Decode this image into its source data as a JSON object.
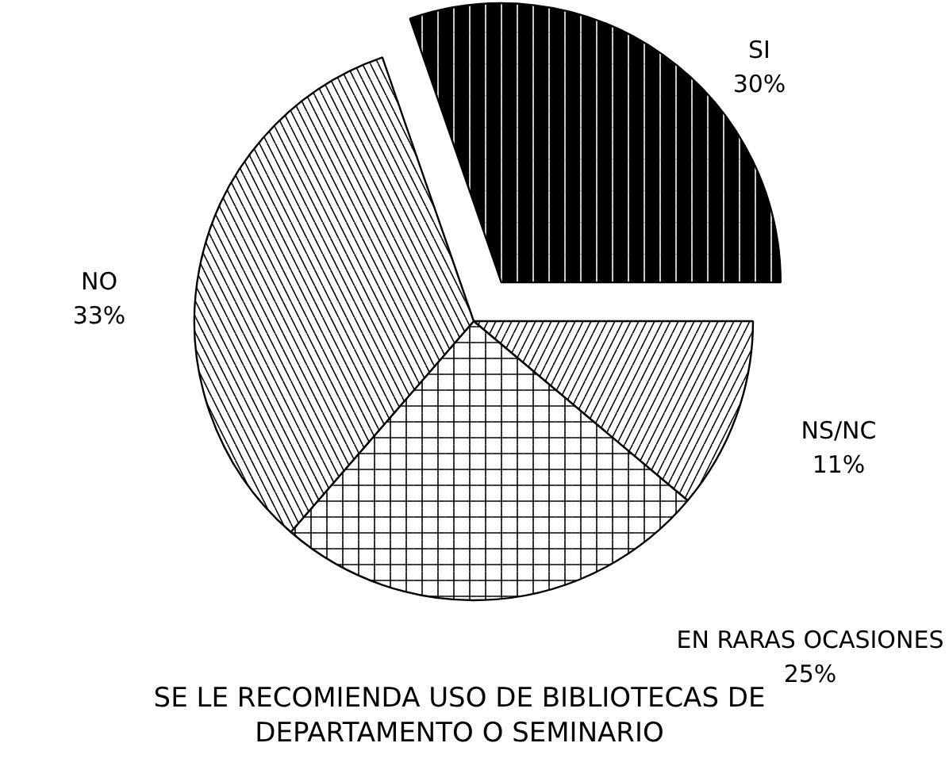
{
  "chart_data": {
    "type": "pie",
    "title": "SE LE RECOMIENDA USO DE BIBLIOTECAS DE\nDEPARTAMENTO O SEMINARIO",
    "categories": [
      "SI",
      "NS/NC",
      "EN RARAS OCASIONES",
      "NO"
    ],
    "values": [
      30,
      11,
      25,
      33
    ],
    "value_labels": [
      "30%",
      "11%",
      "25%",
      "33%"
    ],
    "colors": [
      "#000000",
      "#ffffff",
      "#ffffff",
      "#ffffff"
    ]
  }
}
